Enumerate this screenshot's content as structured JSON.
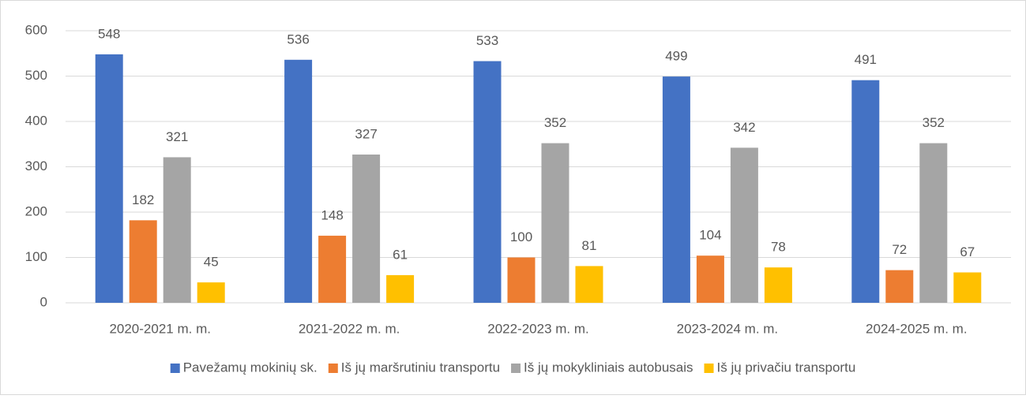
{
  "chart_data": {
    "type": "bar",
    "categories": [
      "2020-2021 m. m.",
      "2021-2022 m. m.",
      "2022-2023 m. m.",
      "2023-2024 m. m.",
      "2024-2025 m. m."
    ],
    "series": [
      {
        "name": "Pavežamų mokinių sk.",
        "color": "#4472c4",
        "values": [
          548,
          536,
          533,
          499,
          491
        ]
      },
      {
        "name": "Iš jų maršrutiniu transportu",
        "color": "#ed7d31",
        "values": [
          182,
          148,
          100,
          104,
          72
        ]
      },
      {
        "name": "Iš jų mokykliniais autobusais",
        "color": "#a5a5a5",
        "values": [
          321,
          327,
          352,
          342,
          352
        ]
      },
      {
        "name": "Iš jų privačiu transportu",
        "color": "#ffc000",
        "values": [
          45,
          61,
          81,
          78,
          67
        ]
      }
    ],
    "ylim": [
      0,
      600
    ],
    "yticks": [
      0,
      100,
      200,
      300,
      400,
      500,
      600
    ],
    "grid": true,
    "legend": "bottom"
  }
}
